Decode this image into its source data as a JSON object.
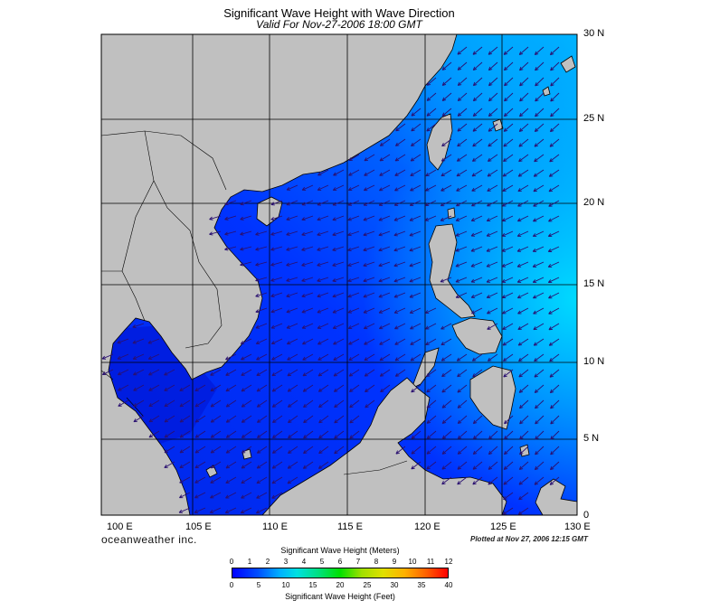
{
  "title": "Significant Wave Height with Wave Direction",
  "subtitle": "Valid For Nov-27-2006 18:00 GMT",
  "lat_labels": [
    "30 N",
    "25 N",
    "20 N",
    "15 N",
    "10 N",
    "5 N",
    "0"
  ],
  "lon_labels": [
    "100 E",
    "105 E",
    "110 E",
    "115 E",
    "120 E",
    "125 E",
    "130 E"
  ],
  "brand": "oceanweather inc.",
  "plotted": "Plotted at Nov 27, 2006 12:15 GMT",
  "scale": {
    "meters_title": "Significant Wave Height (Meters)",
    "meters_ticks": [
      "0",
      "1",
      "2",
      "3",
      "4",
      "5",
      "6",
      "7",
      "8",
      "9",
      "10",
      "11",
      "12"
    ],
    "feet_ticks": [
      "0",
      "5",
      "10",
      "15",
      "20",
      "25",
      "30",
      "35",
      "40"
    ],
    "feet_title": "Significant Wave Height (Feet)"
  },
  "colors": {
    "land": "#c0c0c0",
    "sea_low": "#0040ff",
    "sea_high": "#00d8ff",
    "arrow": "#30107a"
  }
}
